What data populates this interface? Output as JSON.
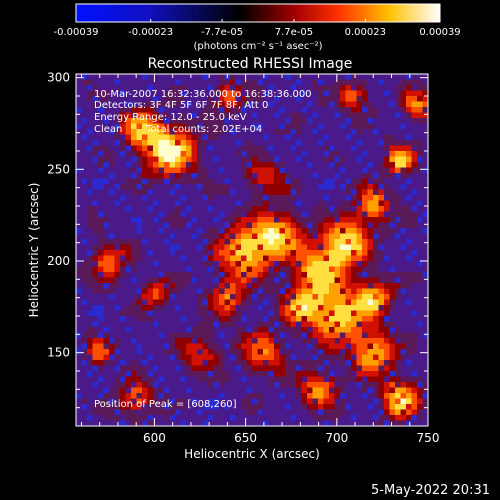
{
  "chart_data": {
    "type": "heatmap",
    "title": "Reconstructed RHESSI Image",
    "xlabel": "Heliocentric X (arcsec)",
    "ylabel": "Heliocentric Y (arcsec)",
    "xlim": [
      557,
      750
    ],
    "ylim": [
      110,
      302
    ],
    "xticks": [
      600,
      650,
      700,
      750
    ],
    "yticks": [
      150,
      200,
      250,
      300
    ],
    "colorbar": {
      "label": "(photons cm⁻² s⁻¹ asec⁻²)",
      "range": [
        -0.00039,
        0.00039
      ],
      "tick_labels": [
        "-0.00039",
        "-0.00023",
        "-7.7e-05",
        "7.7e-05",
        "0.00023",
        "0.00039"
      ],
      "colors": [
        "#0000ff",
        "#000000",
        "#ff0000",
        "#ffff00",
        "#ffffff"
      ]
    },
    "annotations": {
      "time_range": "10-Mar-2007 16:32:36.000 to 16:38:36.000",
      "detectors": "Detectors: 3F 4F 5F 6F 7F 8F, Att 0",
      "energy": "Energy Range: 12.0 - 25.0 keV",
      "method": "Clean",
      "counts": "Total counts: 2.02E+04",
      "peak": "Position of Peak = [608,260]"
    },
    "peak": [
      608,
      260
    ]
  },
  "footer": {
    "date": "5-May-2022 20:31"
  }
}
